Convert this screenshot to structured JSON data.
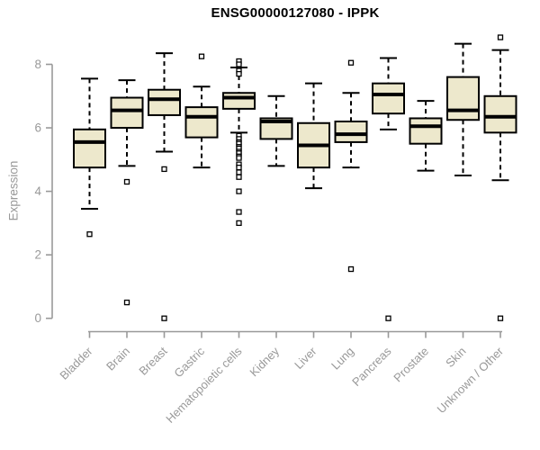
{
  "figure": {
    "background": "#ffffff"
  },
  "chart_data": {
    "type": "boxplot",
    "title": "ENSG00000127080 - IPPK",
    "ylabel": "Expression",
    "xlabel": "",
    "ylim": [
      0,
      8
    ],
    "yticks": [
      0,
      2,
      4,
      6,
      8
    ],
    "grid": false,
    "legend_position": "none",
    "categories": [
      "Bladder",
      "Brain",
      "Breast",
      "Gastric",
      "Hematopoietic cells",
      "Kidney",
      "Liver",
      "Lung",
      "Pancreas",
      "Prostate",
      "Skin",
      "Unknown / Other"
    ],
    "boxes": [
      {
        "category": "Bladder",
        "whisker_low": 3.45,
        "q1": 4.75,
        "median": 5.55,
        "q3": 5.95,
        "whisker_high": 7.55,
        "outliers": [
          2.65
        ]
      },
      {
        "category": "Brain",
        "whisker_low": 4.8,
        "q1": 6.0,
        "median": 6.55,
        "q3": 6.95,
        "whisker_high": 7.5,
        "outliers": [
          4.3,
          0.5
        ]
      },
      {
        "category": "Breast",
        "whisker_low": 5.25,
        "q1": 6.4,
        "median": 6.9,
        "q3": 7.2,
        "whisker_high": 8.35,
        "outliers": [
          4.7,
          0.0
        ]
      },
      {
        "category": "Gastric",
        "whisker_low": 4.75,
        "q1": 5.7,
        "median": 6.35,
        "q3": 6.65,
        "whisker_high": 7.3,
        "outliers": [
          8.25
        ]
      },
      {
        "category": "Hematopoietic cells",
        "whisker_low": 5.85,
        "q1": 6.6,
        "median": 6.95,
        "q3": 7.1,
        "whisker_high": 7.9,
        "outliers": [
          8.1,
          8.0,
          7.8,
          7.7,
          5.75,
          5.65,
          5.55,
          5.5,
          5.4,
          5.35,
          5.25,
          5.2,
          5.1,
          5.05,
          4.85,
          4.75,
          4.6,
          4.45,
          4.0,
          3.35,
          3.0
        ]
      },
      {
        "category": "Kidney",
        "whisker_low": 4.8,
        "q1": 5.65,
        "median": 6.2,
        "q3": 6.3,
        "whisker_high": 7.0,
        "outliers": []
      },
      {
        "category": "Liver",
        "whisker_low": 4.1,
        "q1": 4.75,
        "median": 5.45,
        "q3": 6.15,
        "whisker_high": 7.4,
        "outliers": []
      },
      {
        "category": "Lung",
        "whisker_low": 4.75,
        "q1": 5.55,
        "median": 5.8,
        "q3": 6.2,
        "whisker_high": 7.1,
        "outliers": [
          8.05,
          1.55
        ]
      },
      {
        "category": "Pancreas",
        "whisker_low": 5.95,
        "q1": 6.45,
        "median": 7.05,
        "q3": 7.4,
        "whisker_high": 8.2,
        "outliers": [
          0.0
        ]
      },
      {
        "category": "Prostate",
        "whisker_low": 4.65,
        "q1": 5.5,
        "median": 6.05,
        "q3": 6.3,
        "whisker_high": 6.85,
        "outliers": []
      },
      {
        "category": "Skin",
        "whisker_low": 4.5,
        "q1": 6.25,
        "median": 6.55,
        "q3": 7.6,
        "whisker_high": 8.65,
        "outliers": []
      },
      {
        "category": "Unknown / Other",
        "whisker_low": 4.35,
        "q1": 5.85,
        "median": 6.35,
        "q3": 7.0,
        "whisker_high": 8.45,
        "outliers": [
          8.85,
          0.0
        ]
      }
    ],
    "colors": {
      "box_fill": "#EDE8CC",
      "box_stroke": "#000000",
      "median": "#000000",
      "whisker": "#000000",
      "outlier_stroke": "#000000",
      "outlier_fill": "#ffffff",
      "axis": "#999999",
      "tick_label": "#999999",
      "title": "#000000"
    }
  }
}
